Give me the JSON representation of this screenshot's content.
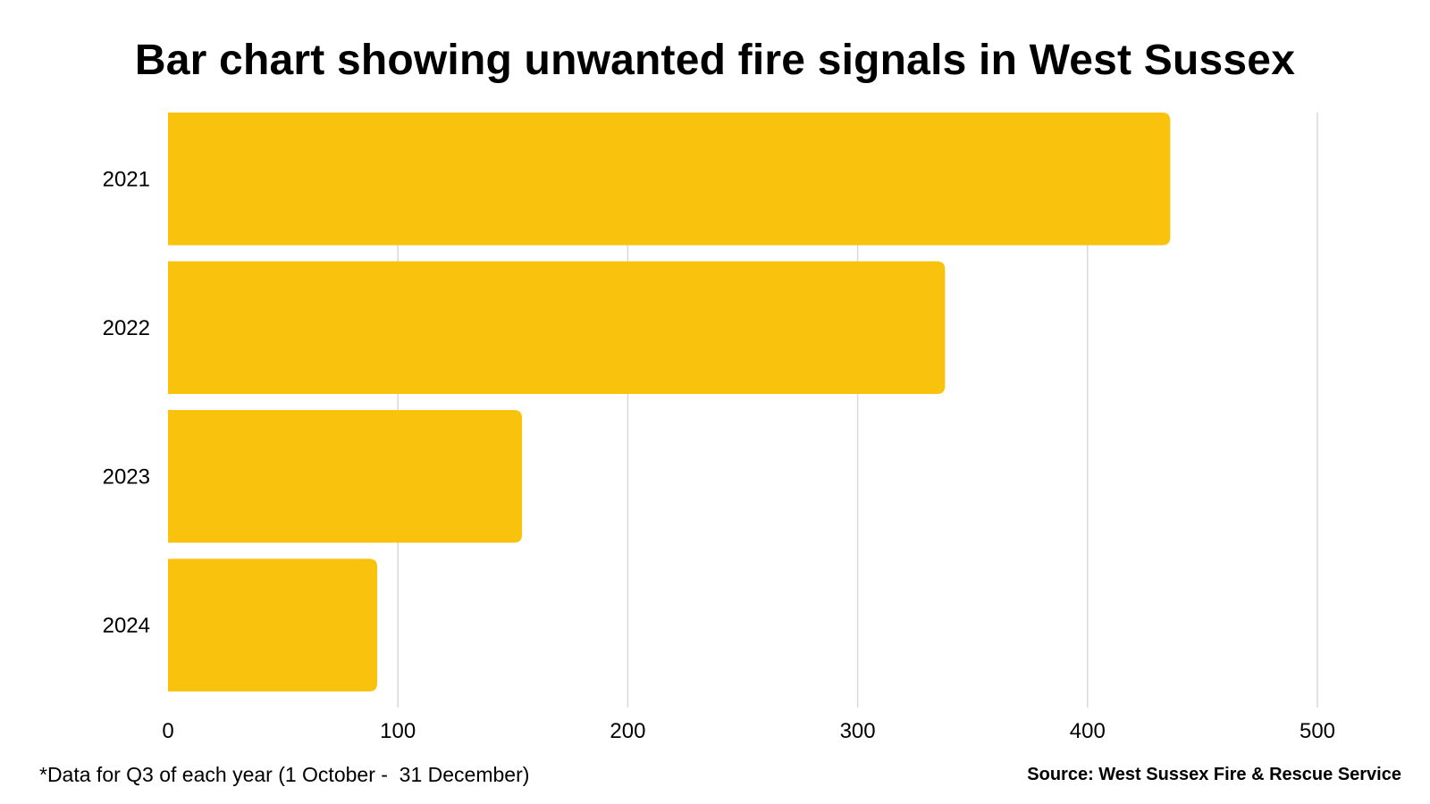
{
  "title": "Bar chart showing unwanted fire signals in West Sussex",
  "footnote": "*Data for Q3 of each year (1 October -  31 December)",
  "source": "Source: West Sussex Fire & Rescue Service",
  "colors": {
    "bar": "#F9C20C",
    "grid": "#D9D9D9",
    "text": "#000000",
    "background": "#FFFFFF"
  },
  "chart_data": {
    "type": "bar",
    "orientation": "horizontal",
    "categories": [
      "2021",
      "2022",
      "2023",
      "2024"
    ],
    "values": [
      436,
      338,
      154,
      91
    ],
    "xlim": [
      0,
      500
    ],
    "xticks": [
      0,
      100,
      200,
      300,
      400,
      500
    ],
    "xlabel": "",
    "ylabel": "",
    "grid": "vertical",
    "legend": "none"
  }
}
